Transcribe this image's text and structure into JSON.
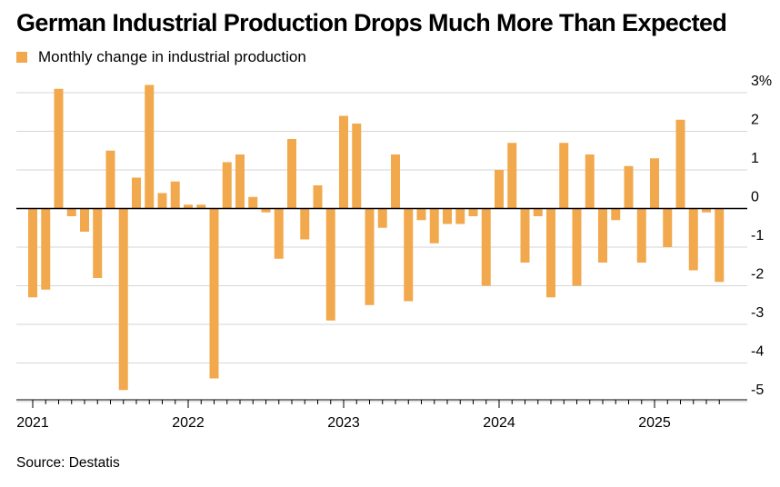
{
  "title": "German Industrial Production Drops Much More Than Expected",
  "legend": {
    "label": "Monthly change in industrial production",
    "color": "#f2a84c"
  },
  "source": "Source: Destatis",
  "chart_data": {
    "type": "bar",
    "series": [
      {
        "name": "Monthly change in industrial production",
        "color": "#f2a84c",
        "values": [
          -2.3,
          -2.1,
          3.1,
          -0.2,
          -0.6,
          -1.8,
          1.5,
          -4.7,
          0.8,
          3.2,
          0.4,
          0.7,
          0.1,
          0.1,
          -4.4,
          1.2,
          1.4,
          0.3,
          -0.1,
          -1.3,
          1.8,
          -0.8,
          0.6,
          -2.9,
          2.4,
          2.2,
          -2.5,
          -0.5,
          1.4,
          -2.4,
          -0.3,
          -0.9,
          -0.4,
          -0.4,
          -0.2,
          -2.0,
          1.0,
          1.7,
          -1.4,
          -0.2,
          -2.3,
          1.7,
          -2.0,
          1.4,
          -1.4,
          -0.3,
          1.1,
          -1.4,
          1.3,
          -1.0,
          2.3,
          -1.6,
          -0.1,
          -1.9
        ]
      }
    ],
    "start": "2021-01",
    "x_tick_labels": [
      "2021",
      "2022",
      "2023",
      "2024",
      "2025"
    ],
    "y_ticks": [
      3,
      2,
      1,
      0,
      -1,
      -2,
      -3,
      -4,
      -5
    ],
    "y_tick_labels": [
      "3%",
      "2",
      "1",
      "0",
      "-1",
      "-2",
      "-3",
      "-4",
      "-5"
    ],
    "ylim": [
      -5,
      3
    ],
    "xlabel": "",
    "ylabel": "",
    "grid": true,
    "legend_position": "top-left"
  }
}
